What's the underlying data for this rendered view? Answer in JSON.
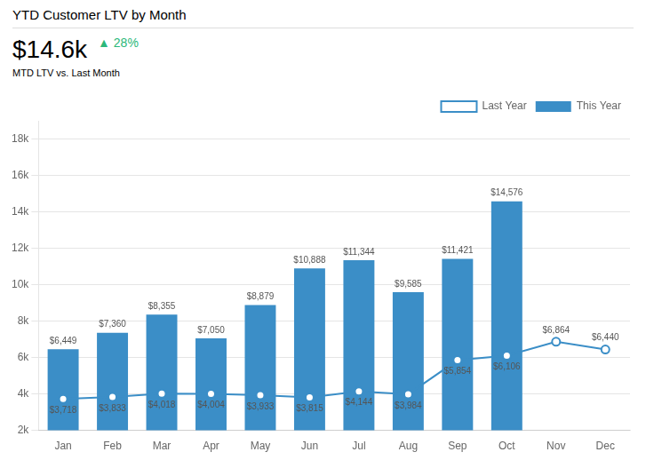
{
  "chart_data": {
    "type": "bar",
    "title": "YTD Customer LTV by Month",
    "subtitle": "$14.6k",
    "annotations": [
      {
        "text": "▲ 28%",
        "color": "#2cb87a"
      },
      {
        "text": "MTD LTV vs. Last Month"
      }
    ],
    "categories": [
      "Jan",
      "Feb",
      "Mar",
      "Apr",
      "May",
      "Jun",
      "Jul",
      "Aug",
      "Sep",
      "Oct",
      "Nov",
      "Dec"
    ],
    "series": [
      {
        "name": "This Year",
        "type": "bar",
        "color": "#3b8ec7",
        "values": [
          6449,
          7360,
          8355,
          7050,
          8879,
          10888,
          11344,
          9585,
          11421,
          14576,
          null,
          null
        ],
        "value_labels": [
          "$6,449",
          "$7,360",
          "$8,355",
          "$7,050",
          "$8,879",
          "$10,888",
          "$11,344",
          "$9,585",
          "$11,421",
          "$14,576",
          null,
          null
        ]
      },
      {
        "name": "Last Year",
        "type": "line",
        "color": "#3b8ec7",
        "marker": "circle",
        "values": [
          3718,
          3833,
          4018,
          4004,
          3933,
          3815,
          4144,
          3984,
          5854,
          6106,
          6864,
          6440
        ],
        "value_labels": [
          "$3,718",
          "$3,833",
          "$4,018",
          "$4,004",
          "$3,933",
          "$3,815",
          "$4,144",
          "$3,984",
          "$5,854",
          "$6,106",
          "$6,864",
          "$6,440"
        ]
      }
    ],
    "ylim": [
      2000,
      19000
    ],
    "yticks": [
      {
        "value": 2000,
        "label": "2k"
      },
      {
        "value": 4000,
        "label": "4k"
      },
      {
        "value": 6000,
        "label": "6k"
      },
      {
        "value": 8000,
        "label": "8k"
      },
      {
        "value": 10000,
        "label": "10k"
      },
      {
        "value": 12000,
        "label": "12k"
      },
      {
        "value": 14000,
        "label": "14k"
      },
      {
        "value": 16000,
        "label": "16k"
      },
      {
        "value": 18000,
        "label": "18k"
      }
    ],
    "grid": true,
    "legend": "upper right",
    "data_labels": true
  }
}
